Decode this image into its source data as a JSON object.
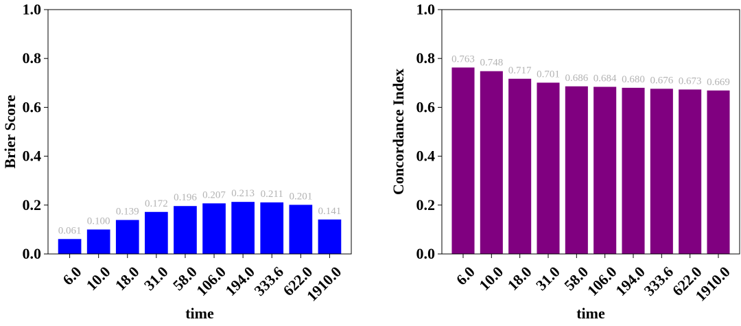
{
  "chart_data": [
    {
      "type": "bar",
      "categories": [
        "6.0",
        "10.0",
        "18.0",
        "31.0",
        "58.0",
        "106.0",
        "194.0",
        "333.6",
        "622.0",
        "1910.0"
      ],
      "values": [
        0.061,
        0.1,
        0.139,
        0.172,
        0.196,
        0.207,
        0.213,
        0.211,
        0.201,
        0.141
      ],
      "value_labels": [
        "0.061",
        "0.100",
        "0.139",
        "0.172",
        "0.196",
        "0.207",
        "0.213",
        "0.211",
        "0.201",
        "0.141"
      ],
      "xlabel": "time",
      "ylabel": "Brier Score",
      "ylim": [
        0,
        1.0
      ],
      "yticks": [
        "0.0",
        "0.2",
        "0.4",
        "0.6",
        "0.8",
        "1.0"
      ],
      "bar_color": "#0000ff",
      "label_color": "#b3b3b3",
      "grid": false
    },
    {
      "type": "bar",
      "categories": [
        "6.0",
        "10.0",
        "18.0",
        "31.0",
        "58.0",
        "106.0",
        "194.0",
        "333.6",
        "622.0",
        "1910.0"
      ],
      "values": [
        0.763,
        0.748,
        0.717,
        0.701,
        0.686,
        0.684,
        0.68,
        0.676,
        0.673,
        0.669
      ],
      "value_labels": [
        "0.763",
        "0.748",
        "0.717",
        "0.701",
        "0.686",
        "0.684",
        "0.680",
        "0.676",
        "0.673",
        "0.669"
      ],
      "xlabel": "time",
      "ylabel": "Concordance Index",
      "ylim": [
        0,
        1.0
      ],
      "yticks": [
        "0.0",
        "0.2",
        "0.4",
        "0.6",
        "0.8",
        "1.0"
      ],
      "bar_color": "#800080",
      "label_color": "#b3b3b3",
      "grid": false
    }
  ]
}
